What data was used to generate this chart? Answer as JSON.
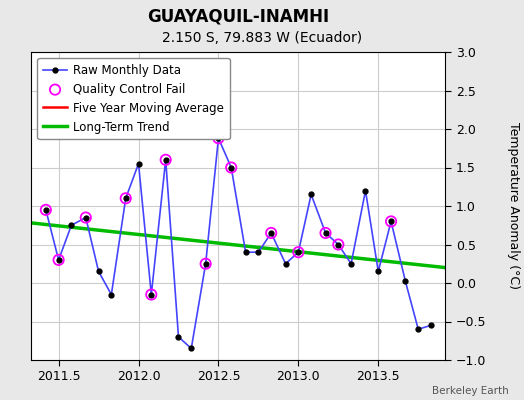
{
  "title": "GUAYAQUIL-INAMHI",
  "subtitle": "2.150 S, 79.883 W (Ecuador)",
  "ylabel": "Temperature Anomaly (°C)",
  "credit": "Berkeley Earth",
  "xlim": [
    2011.33,
    2013.92
  ],
  "ylim": [
    -1.0,
    3.0
  ],
  "xticks": [
    2011.5,
    2012.0,
    2012.5,
    2013.0,
    2013.5
  ],
  "yticks": [
    -1.0,
    -0.5,
    0.0,
    0.5,
    1.0,
    1.5,
    2.0,
    2.5,
    3.0
  ],
  "raw_x": [
    2011.42,
    2011.5,
    2011.58,
    2011.67,
    2011.75,
    2011.83,
    2011.92,
    2012.0,
    2012.08,
    2012.17,
    2012.25,
    2012.33,
    2012.42,
    2012.5,
    2012.58,
    2012.67,
    2012.75,
    2012.83,
    2012.92,
    2013.0,
    2013.08,
    2013.17,
    2013.25,
    2013.33,
    2013.42,
    2013.5,
    2013.58,
    2013.67,
    2013.75,
    2013.83
  ],
  "raw_y": [
    0.95,
    0.3,
    0.75,
    0.85,
    0.15,
    -0.15,
    1.1,
    1.55,
    -0.15,
    1.6,
    -0.7,
    -0.85,
    0.25,
    1.88,
    1.5,
    0.4,
    0.4,
    0.65,
    0.25,
    0.4,
    1.15,
    0.65,
    0.5,
    0.25,
    1.2,
    0.15,
    0.8,
    0.02,
    -0.6,
    -0.55
  ],
  "qc_fail_x": [
    2011.42,
    2011.5,
    2011.67,
    2011.92,
    2012.08,
    2012.17,
    2012.42,
    2012.5,
    2012.58,
    2012.83,
    2013.0,
    2013.17,
    2013.25,
    2013.58
  ],
  "qc_fail_y": [
    0.95,
    0.3,
    0.85,
    1.1,
    -0.15,
    1.6,
    0.25,
    1.88,
    1.5,
    0.65,
    0.4,
    0.65,
    0.5,
    0.8
  ],
  "trend_x": [
    2011.33,
    2013.92
  ],
  "trend_y": [
    0.78,
    0.2
  ],
  "background_color": "#e8e8e8",
  "plot_bg_color": "#ffffff",
  "raw_line_color": "#4444ff",
  "raw_marker_color": "#000000",
  "qc_marker_color": "#ff00ff",
  "trend_color": "#00bb00",
  "ma_color": "#ff0000",
  "title_fontsize": 12,
  "subtitle_fontsize": 10,
  "legend_fontsize": 8.5,
  "tick_labelsize": 9
}
